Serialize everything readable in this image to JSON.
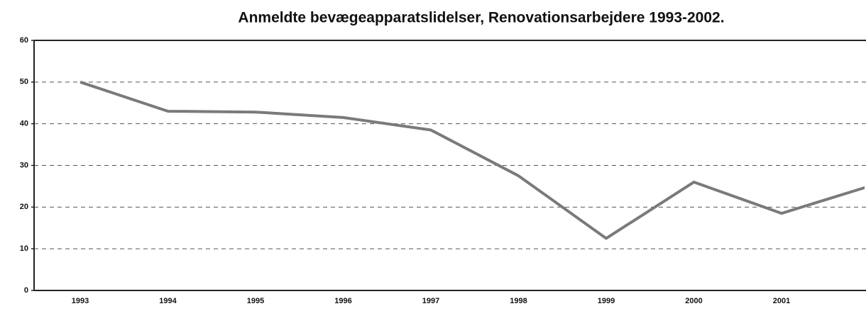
{
  "chart_data": {
    "type": "line",
    "title": "Anmeldte bevægeapparatslidelser, Renovationsarbejdere 1993-2002.",
    "categories": [
      "1993",
      "1994",
      "1995",
      "1996",
      "1997",
      "1998",
      "1999",
      "2000",
      "2001",
      null
    ],
    "series": [
      {
        "name": "Anmeldte",
        "color": "#7a7a7a",
        "values": [
          50,
          43,
          42.8,
          41.5,
          38.5,
          27.5,
          12.5,
          26,
          18.5,
          25
        ]
      }
    ],
    "ylim": [
      0,
      60
    ],
    "yticks": [
      0,
      10,
      20,
      30,
      40,
      50,
      60
    ],
    "grid": true
  }
}
